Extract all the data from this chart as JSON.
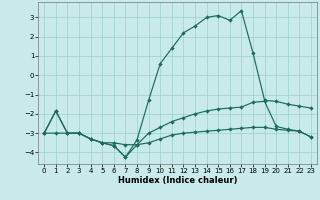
{
  "xlabel": "Humidex (Indice chaleur)",
  "background_color": "#c8eaea",
  "grid_color": "#9ecece",
  "line_color": "#1a6b5a",
  "xlim": [
    -0.5,
    23.5
  ],
  "ylim": [
    -4.6,
    3.8
  ],
  "yticks": [
    -4,
    -3,
    -2,
    -1,
    0,
    1,
    2,
    3
  ],
  "xticks": [
    0,
    1,
    2,
    3,
    4,
    5,
    6,
    7,
    8,
    9,
    10,
    11,
    12,
    13,
    14,
    15,
    16,
    17,
    18,
    19,
    20,
    21,
    22,
    23
  ],
  "line1_x": [
    0,
    1,
    2,
    3,
    4,
    5,
    6,
    7,
    8,
    9,
    10,
    11,
    12,
    13,
    14,
    15,
    16,
    17,
    18,
    19,
    20,
    21,
    22,
    23
  ],
  "line1_y": [
    -3.0,
    -3.0,
    -3.0,
    -3.0,
    -3.3,
    -3.5,
    -3.5,
    -3.6,
    -3.6,
    -3.5,
    -3.3,
    -3.1,
    -3.0,
    -2.95,
    -2.9,
    -2.85,
    -2.8,
    -2.75,
    -2.7,
    -2.7,
    -2.8,
    -2.85,
    -2.9,
    -3.2
  ],
  "line2_x": [
    0,
    1,
    2,
    3,
    4,
    5,
    6,
    7,
    8,
    9,
    10,
    11,
    12,
    13,
    14,
    15,
    16,
    17,
    18,
    19,
    20,
    21,
    22,
    23
  ],
  "line2_y": [
    -3.0,
    -1.85,
    -3.0,
    -3.0,
    -3.3,
    -3.5,
    -3.65,
    -4.25,
    -3.6,
    -3.0,
    -2.7,
    -2.4,
    -2.2,
    -2.0,
    -1.85,
    -1.75,
    -1.7,
    -1.65,
    -1.4,
    -1.35,
    -2.65,
    -2.8,
    -2.9,
    -3.2
  ],
  "line3_x": [
    0,
    1,
    2,
    3,
    4,
    5,
    6,
    7,
    8,
    9,
    10,
    11,
    12,
    13,
    14,
    15,
    16,
    17,
    18,
    19,
    20,
    21,
    22,
    23
  ],
  "line3_y": [
    -3.0,
    -1.85,
    -3.0,
    -3.0,
    -3.3,
    -3.5,
    -3.65,
    -4.25,
    -3.35,
    -1.3,
    0.6,
    1.4,
    2.2,
    2.55,
    3.0,
    3.1,
    2.85,
    3.35,
    1.15,
    -1.3,
    -1.35,
    -1.5,
    -1.6,
    -1.7
  ]
}
